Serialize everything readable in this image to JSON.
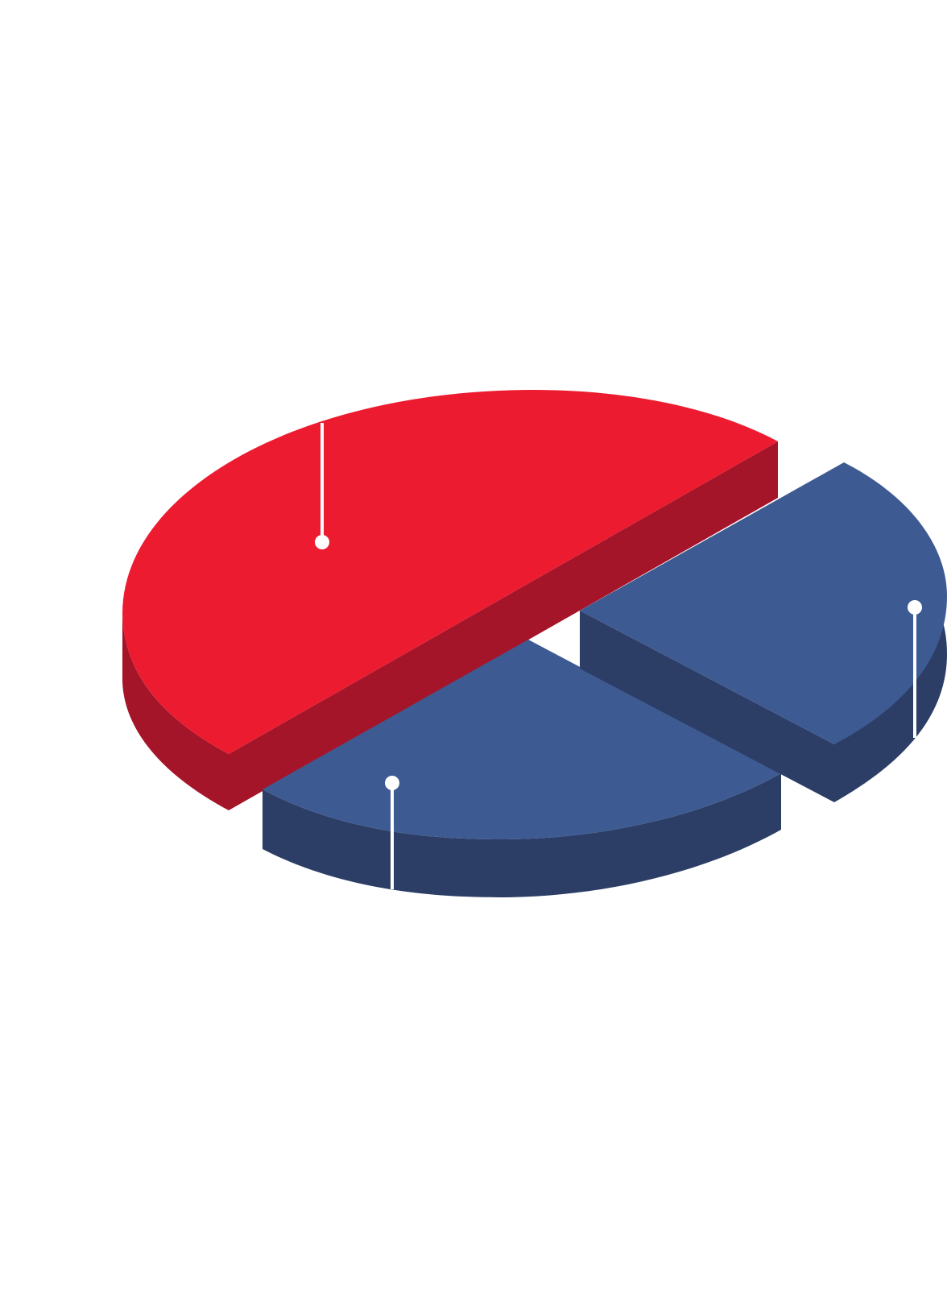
{
  "chart_data": {
    "type": "pie",
    "style": "3d-exploded",
    "slices": [
      {
        "share": 0.5,
        "color_top": "#ED1B30",
        "color_side": "#A5152A"
      },
      {
        "share": 0.3,
        "color_top": "#3E5A92",
        "color_side": "#2C3E66"
      },
      {
        "share": 0.2,
        "color_top": "#3E5A92",
        "color_side": "#2C3E66"
      }
    ],
    "title": "",
    "legend": "none",
    "leader_line_color": "#FFFFFF"
  }
}
